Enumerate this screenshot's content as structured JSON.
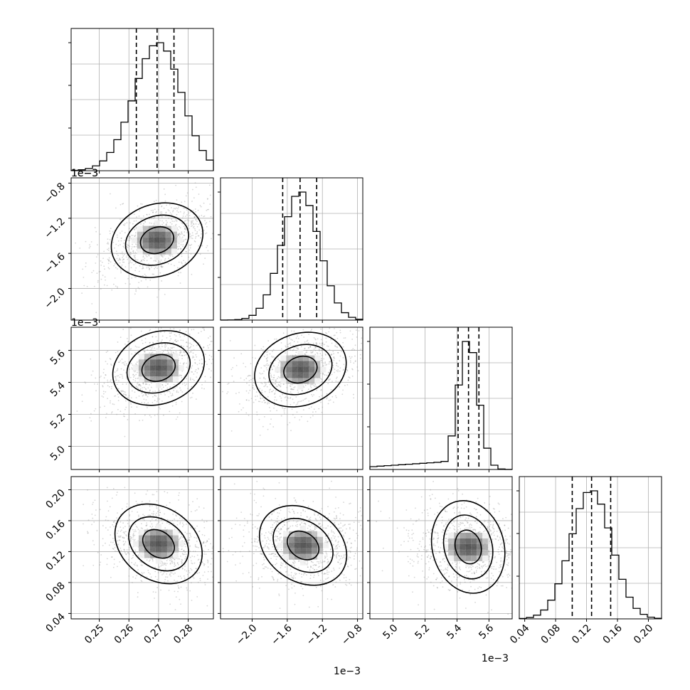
{
  "chart_data": {
    "type": "corner",
    "parameters": [
      {
        "range": [
          0.2405,
          0.2885
        ],
        "ticks": [
          0.25,
          0.26,
          0.27,
          0.28
        ],
        "tick_labels": [
          "0.25",
          "0.26",
          "0.27",
          "0.28"
        ],
        "offset": "",
        "quantiles": [
          0.2625,
          0.2695,
          0.2752
        ],
        "peak": 0.27,
        "sigma_left": 0.0066,
        "sigma_right": 0.0062
      },
      {
        "range": [
          -2.36,
          -0.74
        ],
        "ticks": [
          -2.0,
          -1.6,
          -1.2,
          -0.8
        ],
        "tick_labels": [
          "−2.0",
          "−1.6",
          "−1.2",
          "−0.8"
        ],
        "offset": "1e−3",
        "quantiles": [
          -1.652,
          -1.454,
          -1.265
        ],
        "peak": -1.45,
        "sigma_left": 0.17,
        "sigma_right": 0.17
      },
      {
        "range": [
          4.855,
          5.745
        ],
        "ticks": [
          5.0,
          5.2,
          5.4,
          5.6
        ],
        "tick_labels": [
          "5.0",
          "5.2",
          "5.4",
          "5.6"
        ],
        "offset": "1e−3",
        "quantiles": [
          5.407,
          5.472,
          5.537
        ],
        "peak": 5.47,
        "sigma_left": 0.05,
        "sigma_right": 0.05
      },
      {
        "range": [
          0.033,
          0.217
        ],
        "ticks": [
          0.04,
          0.08,
          0.12,
          0.16,
          0.2
        ],
        "tick_labels": [
          "0.04",
          "0.08",
          "0.12",
          "0.16",
          "0.20"
        ],
        "offset": "",
        "quantiles": [
          0.1015,
          0.1265,
          0.1512
        ],
        "peak": 0.126,
        "sigma_left": 0.021,
        "sigma_right": 0.021
      }
    ],
    "bottom_offset_labels": [
      "",
      "1e−3",
      "1e−3",
      ""
    ],
    "left_offset_labels": [
      "",
      "1e−3",
      "",
      ""
    ],
    "density_centers": {
      "1-0": [
        0.2695,
        -1.45
      ],
      "2-0": [
        0.27,
        5.49
      ],
      "2-1": [
        -1.45,
        5.48
      ],
      "3-0": [
        0.27,
        0.13
      ],
      "3-1": [
        -1.42,
        0.128
      ],
      "3-2": [
        5.47,
        0.126
      ]
    },
    "grid": true,
    "contour_levels": 3,
    "show_quantiles": true
  }
}
